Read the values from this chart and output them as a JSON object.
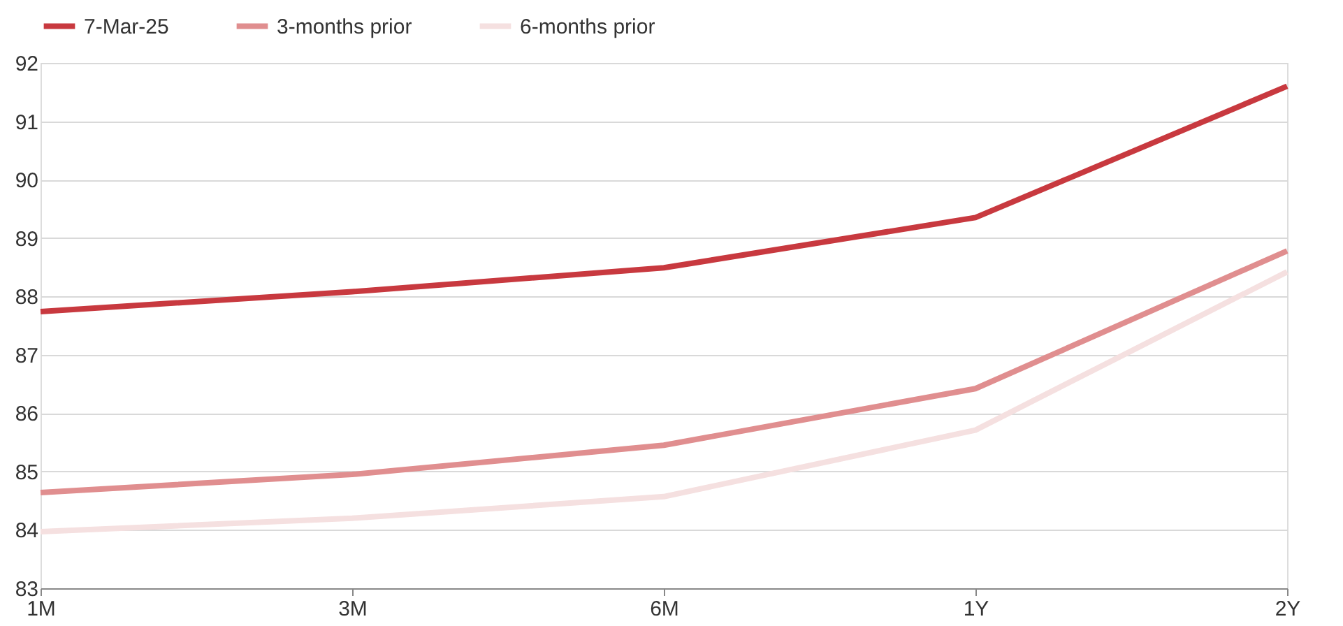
{
  "chart_data": {
    "type": "line",
    "categories": [
      "1M",
      "3M",
      "6M",
      "1Y",
      "2Y"
    ],
    "series": [
      {
        "name": "7-Mar-25",
        "color": "#c8393f",
        "values": [
          87.74,
          88.08,
          88.49,
          89.35,
          91.6
        ]
      },
      {
        "name": "3-months prior",
        "color": "#e08e8f",
        "values": [
          84.64,
          84.95,
          85.45,
          86.42,
          88.78
        ]
      },
      {
        "name": "6-months prior",
        "color": "#f5e0e0",
        "values": [
          83.97,
          84.2,
          84.57,
          85.71,
          88.42
        ]
      }
    ],
    "ylim": [
      83,
      92
    ],
    "yticks": [
      83,
      84,
      85,
      86,
      87,
      88,
      89,
      90,
      91,
      92
    ],
    "grid": "y",
    "legend": "top",
    "marker": "none",
    "line_style": "solid"
  }
}
